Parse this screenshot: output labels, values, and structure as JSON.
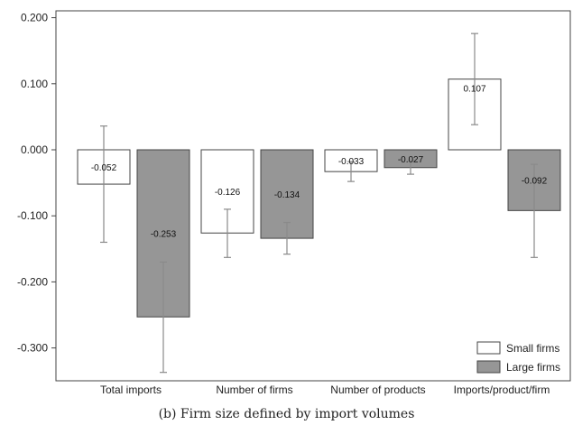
{
  "caption": "(b) Firm size defined by import volumes",
  "colors": {
    "small": "#ffffff",
    "large": "#969696",
    "stroke": "#444444",
    "errorbar": "#8a8a8a"
  },
  "chart_data": {
    "type": "bar",
    "categories": [
      "Total imports",
      "Number of firms",
      "Number of products",
      "Imports/product/firm"
    ],
    "series": [
      {
        "name": "Small firms",
        "values": [
          -0.052,
          -0.126,
          -0.033,
          0.107
        ],
        "labels": [
          "-0.052",
          "-0.126",
          "-0.033",
          "0.107"
        ],
        "ci_low": [
          -0.14,
          -0.163,
          -0.048,
          0.038
        ],
        "ci_high": [
          0.036,
          -0.09,
          -0.018,
          0.176
        ]
      },
      {
        "name": "Large firms",
        "values": [
          -0.253,
          -0.134,
          -0.027,
          -0.092
        ],
        "labels": [
          "-0.253",
          "-0.134",
          "-0.027",
          "-0.092"
        ],
        "ci_low": [
          -0.337,
          -0.158,
          -0.037,
          -0.163
        ],
        "ci_high": [
          -0.17,
          -0.11,
          -0.017,
          -0.022
        ]
      }
    ],
    "yticks": [
      0.2,
      0.1,
      0.0,
      -0.1,
      -0.2,
      -0.3
    ],
    "ytick_labels": [
      "0.200",
      "0.100",
      "0.000",
      "-0.100",
      "-0.200",
      "-0.300"
    ],
    "ylim": [
      -0.35,
      0.21
    ],
    "legend_position": "bottom-right",
    "grid": false
  }
}
